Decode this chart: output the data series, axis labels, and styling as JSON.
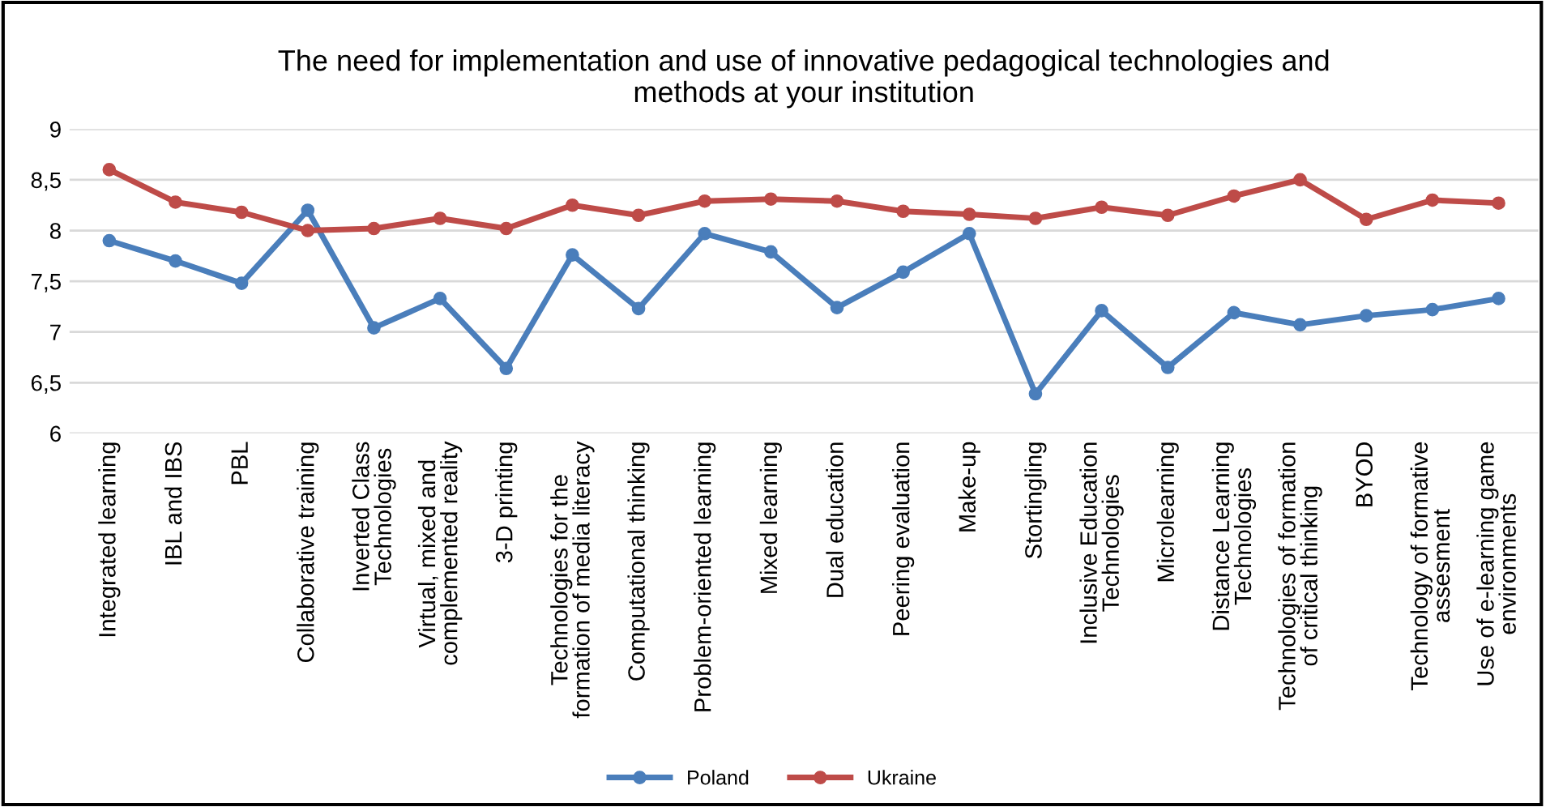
{
  "chart_data": {
    "type": "line",
    "title": "The need for implementation and use of innovative pedagogical technologies and\nmethods at your institution",
    "categories": [
      "Integrated learning",
      "IBL and IBS",
      "PBL",
      "Collaborative training",
      "Inverted Class\nTechnologies",
      "Virtual, mixed and\ncomplemented reality",
      "3-D printing",
      "Technologies for the\nformation of media literacy",
      "Computational thinking",
      "Problem-oriented learning",
      "Mixed learning",
      "Dual education",
      "Peering evaluation",
      "Make-up",
      "Stortingling",
      "Inclusive Education\nTechnologies",
      "Microlearning",
      "Distance Learning\nTechnologies",
      "Technologies of formation\nof critical thinking",
      "BYOD",
      "Technology of formative\nassesment",
      "Use of e-learning game\nenvironments"
    ],
    "series": [
      {
        "name": "Poland",
        "color": "#4a7ebb",
        "values": [
          7.9,
          7.7,
          7.48,
          8.2,
          7.04,
          7.33,
          6.64,
          7.76,
          7.23,
          7.97,
          7.79,
          7.24,
          7.59,
          7.97,
          6.39,
          7.21,
          6.65,
          7.19,
          7.07,
          7.16,
          7.22,
          7.33
        ]
      },
      {
        "name": "Ukraine",
        "color": "#be4b48",
        "values": [
          8.6,
          8.28,
          8.18,
          8.0,
          8.02,
          8.12,
          8.02,
          8.25,
          8.15,
          8.29,
          8.31,
          8.29,
          8.19,
          8.16,
          8.12,
          8.23,
          8.15,
          8.34,
          8.5,
          8.11,
          8.3,
          8.27
        ]
      }
    ],
    "ylim": [
      6,
      9
    ],
    "yticks": [
      6,
      {
        "value": 6.5,
        "label": "6,5"
      },
      7,
      {
        "value": 7.5,
        "label": "7,5"
      },
      8,
      {
        "value": 8.5,
        "label": "8,5"
      },
      9
    ],
    "grid": "y",
    "legend": "bottom",
    "marker": "circle",
    "line_style": "solid"
  }
}
